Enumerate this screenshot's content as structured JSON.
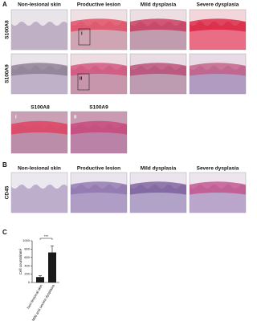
{
  "figure": {
    "panel_a": {
      "label": "A",
      "columns": [
        "Non-lesional skin",
        "Productive lesion",
        "Mild dysplasia",
        "Severe dysplasia"
      ],
      "rows": [
        "S100A8",
        "S100A9"
      ],
      "box_labels": [
        "i",
        "ii"
      ],
      "insets": [
        "S100A8",
        "S100A9"
      ],
      "inset_labels": [
        "i",
        "ii"
      ]
    },
    "panel_b": {
      "label": "B",
      "columns": [
        "Non-lesional skin",
        "Productive lesion",
        "Mild dysplasia",
        "Severe dysplasia"
      ],
      "rows": [
        "CD45"
      ]
    },
    "panel_c": {
      "label": "C"
    }
  },
  "chart_data": {
    "type": "bar",
    "ylabel": "Cell counts/mm²",
    "categories": [
      "Non-lesional skin",
      "Mild and severe dysplasia"
    ],
    "values": [
      130,
      720
    ],
    "errors": [
      30,
      160
    ],
    "color": "#1a1a1a",
    "ylim": [
      0,
      1000
    ],
    "yticks": [
      0,
      200,
      400,
      600,
      800,
      1000
    ],
    "annotation": "***"
  }
}
